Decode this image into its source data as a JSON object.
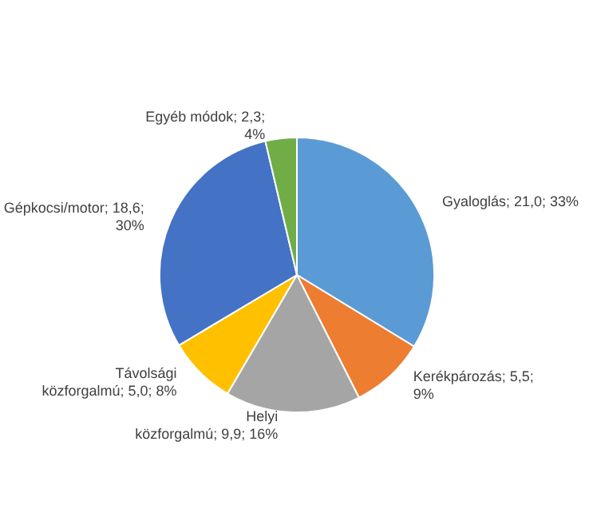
{
  "chart_data": {
    "type": "pie",
    "categories": [
      "Gyaloglás",
      "Kerékpározás",
      "Helyi közforgalmú",
      "Távolsági közforgalmú",
      "Gépkocsi/motor",
      "Egyéb módok"
    ],
    "values": [
      21.0,
      5.5,
      9.9,
      5.0,
      18.6,
      2.3
    ],
    "value_labels": [
      "21,0; 33%",
      "5,5; 9%",
      "9,9; 16%",
      "5,0; 8%",
      "18,6; 30%",
      "2,3; 4%"
    ],
    "colors": [
      "#5b9bd5",
      "#ed7d31",
      "#a5a5a5",
      "#ffc000",
      "#4472c4",
      "#70ad47"
    ],
    "legend": false
  }
}
